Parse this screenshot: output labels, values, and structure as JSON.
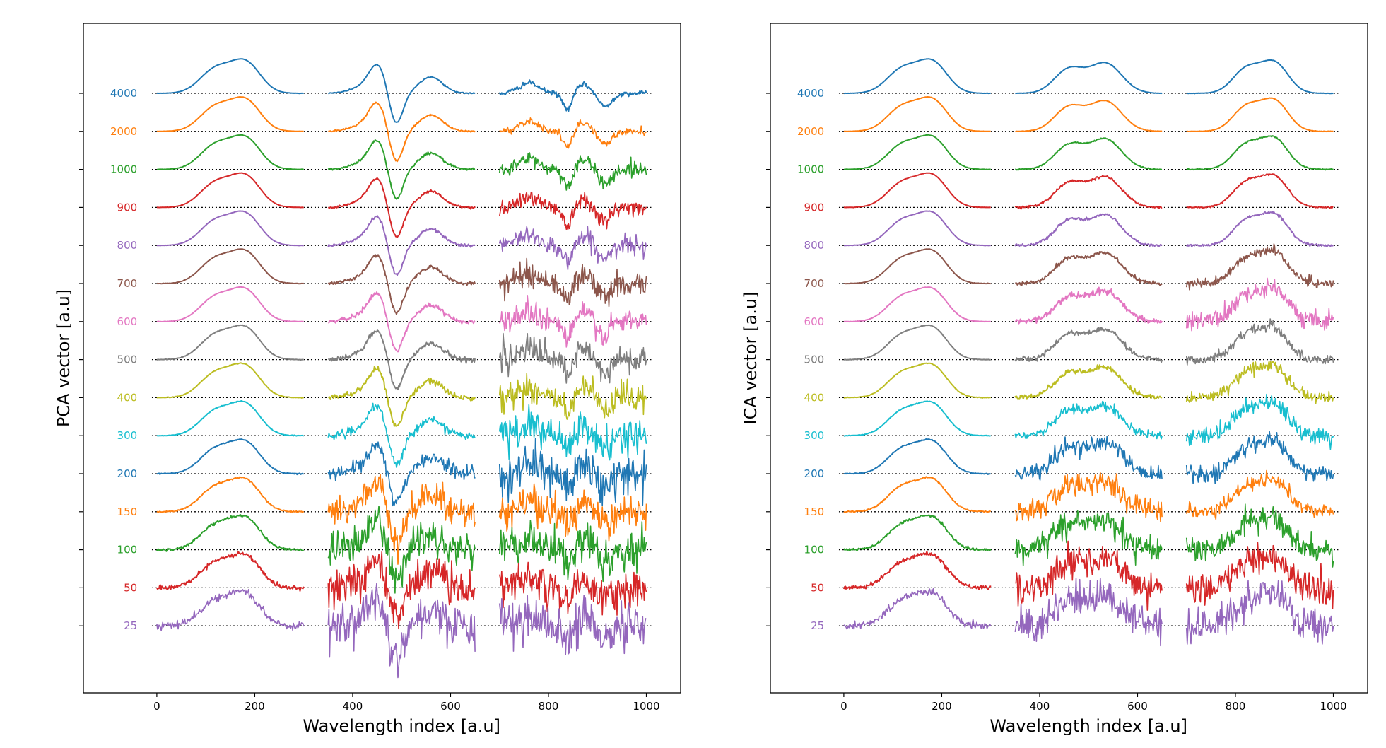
{
  "chart_data": [
    {
      "type": "line",
      "panel": "left",
      "xlabel": "Wavelength index [a.u]",
      "ylabel": "PCA vector [a.u]",
      "xlim": [
        -150,
        1070
      ],
      "xticks": [
        0,
        200,
        400,
        600,
        800,
        1000
      ],
      "grid": false,
      "segments": [
        {
          "x_range": [
            0,
            300
          ],
          "description": "PCA component 1: double-peak spectrum (peaks near index 120 and 180)",
          "shape": "double_peak"
        },
        {
          "x_range": [
            350,
            650
          ],
          "description": "PCA component 2: derivative-like feature (peak ~450, dip ~480, peak ~560)",
          "shape": "derivative"
        },
        {
          "x_range": [
            700,
            1000
          ],
          "description": "PCA component 3: mostly noise with dips near 840 and 900",
          "shape": "third_noisy"
        }
      ],
      "series": [
        {
          "name": "4000",
          "color": "#1f77b4",
          "noise": [
            0.002,
            0.01,
            0.04
          ]
        },
        {
          "name": "2000",
          "color": "#ff7f0e",
          "noise": [
            0.002,
            0.015,
            0.06
          ]
        },
        {
          "name": "1000",
          "color": "#2ca02c",
          "noise": [
            0.003,
            0.02,
            0.12
          ]
        },
        {
          "name": "900",
          "color": "#d62728",
          "noise": [
            0.003,
            0.02,
            0.14
          ]
        },
        {
          "name": "800",
          "color": "#9467bd",
          "noise": [
            0.003,
            0.025,
            0.16
          ]
        },
        {
          "name": "700",
          "color": "#8c564b",
          "noise": [
            0.004,
            0.03,
            0.2
          ]
        },
        {
          "name": "600",
          "color": "#e377c2",
          "noise": [
            0.004,
            0.035,
            0.22
          ]
        },
        {
          "name": "500",
          "color": "#7f7f7f",
          "noise": [
            0.005,
            0.04,
            0.24
          ]
        },
        {
          "name": "400",
          "color": "#bcbd22",
          "noise": [
            0.005,
            0.05,
            0.26
          ]
        },
        {
          "name": "300",
          "color": "#17becf",
          "noise": [
            0.006,
            0.07,
            0.28
          ]
        },
        {
          "name": "200",
          "color": "#1f77b4",
          "noise": [
            0.008,
            0.12,
            0.3
          ]
        },
        {
          "name": "150",
          "color": "#ff7f0e",
          "noise": [
            0.012,
            0.25,
            0.3
          ]
        },
        {
          "name": "100",
          "color": "#2ca02c",
          "noise": [
            0.02,
            0.3,
            0.32
          ]
        },
        {
          "name": "50",
          "color": "#d62728",
          "noise": [
            0.035,
            0.33,
            0.33
          ]
        },
        {
          "name": "25",
          "color": "#9467bd",
          "noise": [
            0.06,
            0.35,
            0.35
          ]
        }
      ]
    },
    {
      "type": "line",
      "panel": "right",
      "xlabel": "Wavelength index [a.u]",
      "ylabel": "ICA vector [a.u]",
      "xlim": [
        -150,
        1070
      ],
      "xticks": [
        0,
        200,
        400,
        600,
        800,
        1000
      ],
      "grid": false,
      "segments": [
        {
          "x_range": [
            0,
            300
          ],
          "description": "ICA component 1: double-peak spectrum (peaks near index 120 and 180)",
          "shape": "double_peak"
        },
        {
          "x_range": [
            350,
            650
          ],
          "description": "ICA component 2: double-peak spectrum (peaks near index 460 and 530)",
          "shape": "double_peak_b"
        },
        {
          "x_range": [
            700,
            1000
          ],
          "description": "ICA component 3: double-peak spectrum (peaks near index 820 and 880)",
          "shape": "double_peak_c"
        }
      ],
      "series": [
        {
          "name": "4000",
          "color": "#1f77b4",
          "noise": [
            0.002,
            0.003,
            0.003
          ]
        },
        {
          "name": "2000",
          "color": "#ff7f0e",
          "noise": [
            0.002,
            0.004,
            0.004
          ]
        },
        {
          "name": "1000",
          "color": "#2ca02c",
          "noise": [
            0.003,
            0.01,
            0.01
          ]
        },
        {
          "name": "900",
          "color": "#d62728",
          "noise": [
            0.003,
            0.02,
            0.015
          ]
        },
        {
          "name": "800",
          "color": "#9467bd",
          "noise": [
            0.003,
            0.025,
            0.02
          ]
        },
        {
          "name": "700",
          "color": "#8c564b",
          "noise": [
            0.004,
            0.03,
            0.08
          ]
        },
        {
          "name": "600",
          "color": "#e377c2",
          "noise": [
            0.004,
            0.05,
            0.15
          ]
        },
        {
          "name": "500",
          "color": "#7f7f7f",
          "noise": [
            0.005,
            0.04,
            0.08
          ]
        },
        {
          "name": "400",
          "color": "#bcbd22",
          "noise": [
            0.005,
            0.04,
            0.1
          ]
        },
        {
          "name": "300",
          "color": "#17becf",
          "noise": [
            0.006,
            0.08,
            0.15
          ]
        },
        {
          "name": "200",
          "color": "#1f77b4",
          "noise": [
            0.008,
            0.15,
            0.15
          ]
        },
        {
          "name": "150",
          "color": "#ff7f0e",
          "noise": [
            0.012,
            0.2,
            0.12
          ]
        },
        {
          "name": "100",
          "color": "#2ca02c",
          "noise": [
            0.02,
            0.22,
            0.2
          ]
        },
        {
          "name": "50",
          "color": "#d62728",
          "noise": [
            0.035,
            0.26,
            0.26
          ]
        },
        {
          "name": "25",
          "color": "#9467bd",
          "noise": [
            0.06,
            0.3,
            0.3
          ]
        }
      ]
    }
  ]
}
